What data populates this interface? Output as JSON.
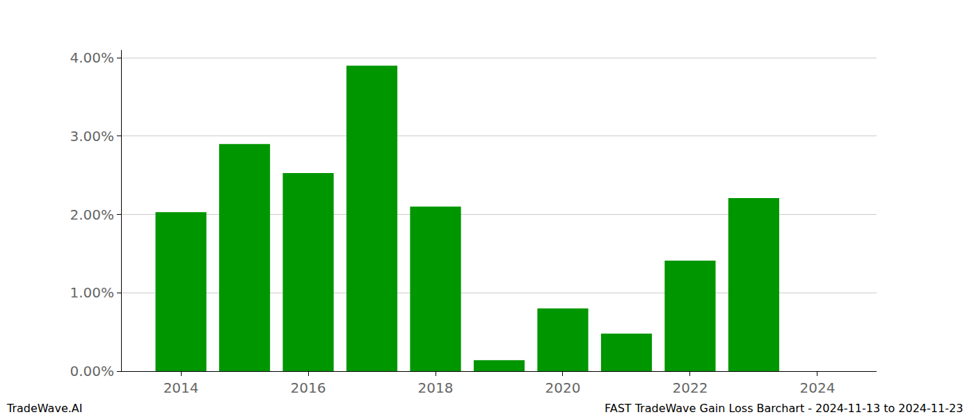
{
  "chart_data": {
    "type": "bar",
    "x": [
      2014,
      2015,
      2016,
      2017,
      2018,
      2019,
      2020,
      2021,
      2022,
      2023
    ],
    "values": [
      2.03,
      2.9,
      2.53,
      3.9,
      2.1,
      0.14,
      0.8,
      0.48,
      1.41,
      2.21
    ],
    "color": "#009600",
    "xlim": [
      2013.07,
      2024.93
    ],
    "xticks": [
      2014,
      2016,
      2018,
      2020,
      2022,
      2024
    ],
    "ylim": [
      0,
      4.1
    ],
    "yticks": [
      {
        "value": 0,
        "label": "0.00%"
      },
      {
        "value": 1,
        "label": "1.00%"
      },
      {
        "value": 2,
        "label": "2.00%"
      },
      {
        "value": 3,
        "label": "3.00%"
      },
      {
        "value": 4,
        "label": "4.00%"
      }
    ],
    "grid": true,
    "annotations": [
      "TradeWave.AI",
      "FAST TradeWave Gain Loss Barchart - 2024-11-13 to 2024-11-23"
    ]
  }
}
